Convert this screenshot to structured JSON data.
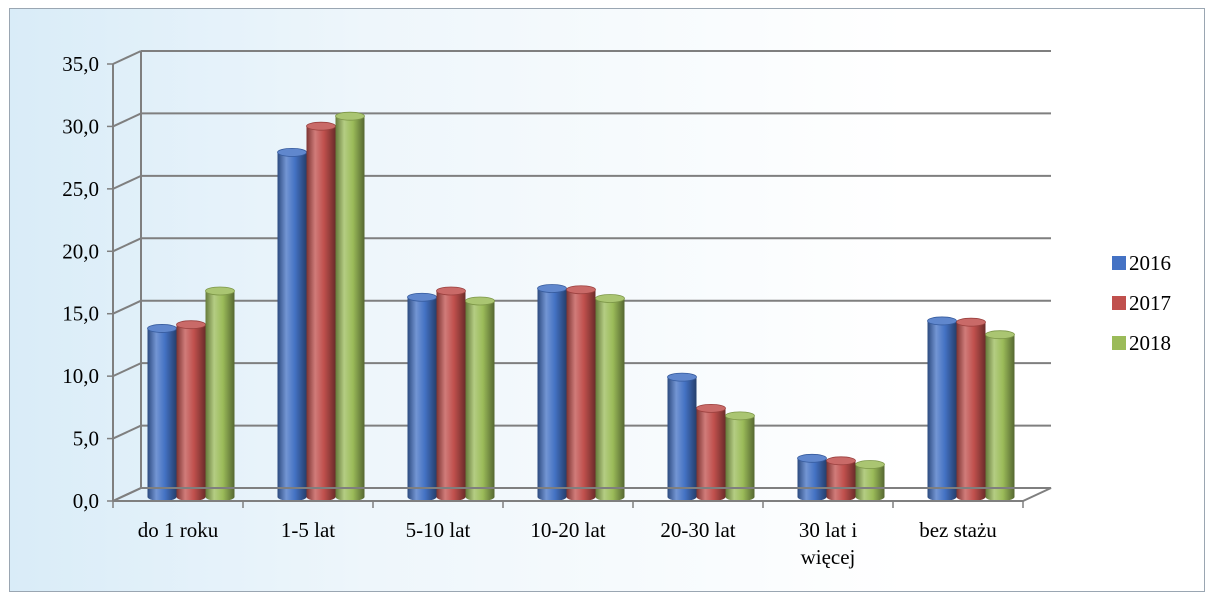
{
  "chart_data": {
    "type": "bar",
    "categories": [
      "do 1 roku",
      "1-5 lat",
      "5-10 lat",
      "10-20 lat",
      "20-30 lat",
      "30 lat i więcej",
      "bez stażu"
    ],
    "category_lines": [
      [
        "do 1 roku"
      ],
      [
        "1-5 lat"
      ],
      [
        "5-10 lat"
      ],
      [
        "10-20 lat"
      ],
      [
        "20-30 lat"
      ],
      [
        "30 lat i",
        "więcej"
      ],
      [
        "bez stażu"
      ]
    ],
    "series": [
      {
        "name": "2016",
        "color": "#4472c4",
        "values": [
          13.5,
          27.6,
          16.0,
          16.7,
          9.6,
          3.1,
          14.1
        ]
      },
      {
        "name": "2017",
        "color": "#c0504d",
        "values": [
          13.8,
          29.7,
          16.5,
          16.6,
          7.1,
          2.9,
          14.0
        ]
      },
      {
        "name": "2018",
        "color": "#9bbb59",
        "values": [
          16.5,
          30.5,
          15.7,
          15.9,
          6.5,
          2.6,
          13.0
        ]
      }
    ],
    "ylim": [
      0,
      35
    ],
    "yticks": [
      "0,0",
      "5,0",
      "10,0",
      "15,0",
      "20,0",
      "25,0",
      "30,0",
      "35,0"
    ],
    "grid": true,
    "legend_position": "right",
    "three_d": true
  }
}
